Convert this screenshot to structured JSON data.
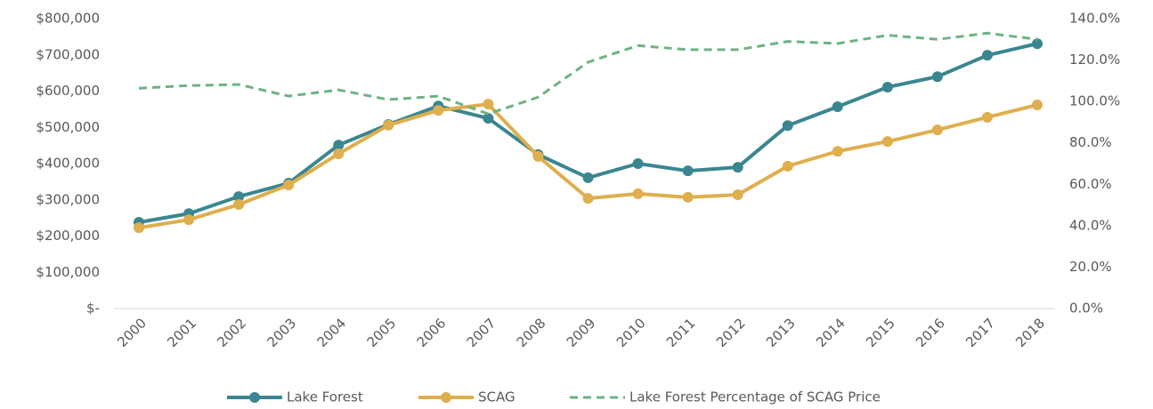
{
  "chart_data": {
    "type": "line",
    "categories": [
      "2000",
      "2001",
      "2002",
      "2003",
      "2004",
      "2005",
      "2006",
      "2007",
      "2008",
      "2009",
      "2010",
      "2011",
      "2012",
      "2013",
      "2014",
      "2015",
      "2016",
      "2017",
      "2018"
    ],
    "series": [
      {
        "name": "Lake Forest",
        "color": "#3a8690",
        "values": [
          238000,
          262000,
          309000,
          346000,
          451000,
          508000,
          559000,
          525000,
          425000,
          361000,
          400000,
          380000,
          390000,
          505000,
          557000,
          611000,
          640000,
          699000,
          731000
        ]
      },
      {
        "name": "SCAG",
        "color": "#dfae4d",
        "values": [
          223000,
          245000,
          287000,
          341000,
          427000,
          506000,
          547000,
          564000,
          420000,
          304000,
          317000,
          307000,
          314000,
          393000,
          434000,
          461000,
          493000,
          528000,
          562000
        ]
      },
      {
        "name": "Lake Forest Percentage of SCAG Price",
        "color": "#6db381",
        "dashed": true,
        "axis": "y2",
        "values": [
          106.4,
          107.7,
          108.2,
          102.6,
          105.6,
          100.9,
          102.6,
          94,
          102.1,
          119,
          127,
          125,
          125,
          129,
          128,
          132,
          130,
          133,
          130
        ]
      }
    ],
    "ylim": [
      0,
      800000
    ],
    "yticks": [
      {
        "value": 0,
        "label": "$-"
      },
      {
        "value": 100000,
        "label": "$100,000"
      },
      {
        "value": 200000,
        "label": "$200,000"
      },
      {
        "value": 300000,
        "label": "$300,000"
      },
      {
        "value": 400000,
        "label": "$400,000"
      },
      {
        "value": 500000,
        "label": "$500,000"
      },
      {
        "value": 600000,
        "label": "$600,000"
      },
      {
        "value": 700000,
        "label": "$700,000"
      },
      {
        "value": 800000,
        "label": "$800,000"
      }
    ],
    "y2lim": [
      0,
      140
    ],
    "y2ticks": [
      {
        "value": 0,
        "label": "0.0%"
      },
      {
        "value": 20,
        "label": "20.0%"
      },
      {
        "value": 40,
        "label": "40.0%"
      },
      {
        "value": 60,
        "label": "60.0%"
      },
      {
        "value": 80,
        "label": "80.0%"
      },
      {
        "value": 100,
        "label": "100.0%"
      },
      {
        "value": 120,
        "label": "120.0%"
      },
      {
        "value": 140,
        "label": "140.0%"
      }
    ],
    "grid": false,
    "legend": "bottom"
  }
}
